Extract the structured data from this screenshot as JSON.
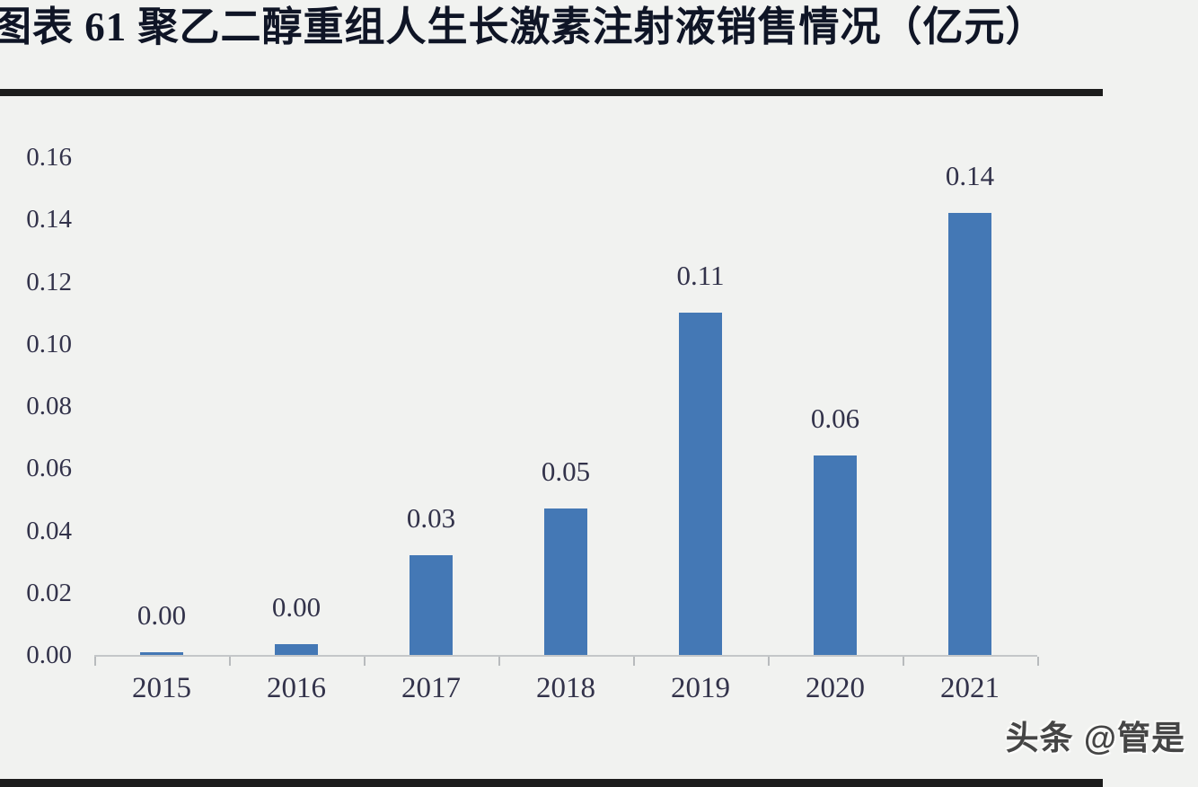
{
  "chart_data": {
    "type": "bar",
    "title": "图表 61 聚乙二醇重组人生长激素注射液销售情况（亿元）",
    "categories": [
      "2015",
      "2016",
      "2017",
      "2018",
      "2019",
      "2020",
      "2021"
    ],
    "values": [
      0.001,
      0.0035,
      0.032,
      0.047,
      0.11,
      0.064,
      0.142
    ],
    "labels": [
      "0.00",
      "0.00",
      "0.03",
      "0.05",
      "0.11",
      "0.06",
      "0.14"
    ],
    "yticks": [
      0.16,
      0.14,
      0.12,
      0.1,
      0.08,
      0.06,
      0.04,
      0.02,
      0.0
    ],
    "ytick_labels": [
      "0.16",
      "0.14",
      "0.12",
      "0.10",
      "0.08",
      "0.06",
      "0.04",
      "0.02",
      "0.00"
    ],
    "ylim": [
      0,
      0.16
    ],
    "xlabel": "",
    "ylabel": "",
    "grid": false,
    "legend": false,
    "bar_color": "#4478b5"
  },
  "colors": {
    "background": "#f1f2f0",
    "title_text": "#0f1526",
    "axis_text": "#32324a",
    "axis_line": "#c4c7c9",
    "tick_mark": "#b8bbbd",
    "divider": "#1c1c1c"
  },
  "watermark": {
    "text": "头条 @管是"
  }
}
